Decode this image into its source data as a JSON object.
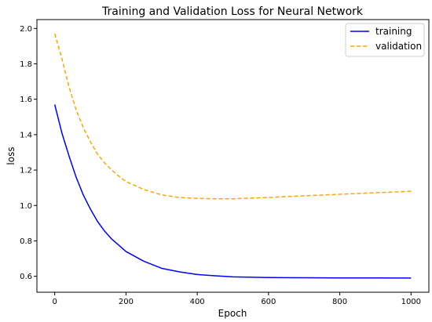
{
  "chart_data": {
    "type": "line",
    "title": "Training and Validation Loss for Neural Network",
    "xlabel": "Epoch",
    "ylabel": "loss",
    "xlim": [
      -50,
      1050
    ],
    "ylim": [
      0.51,
      2.05
    ],
    "xticks": [
      0,
      200,
      400,
      600,
      800,
      1000
    ],
    "yticks": [
      0.6,
      0.8,
      1.0,
      1.2,
      1.4,
      1.6,
      1.8,
      2.0
    ],
    "xtick_labels": [
      "0",
      "200",
      "400",
      "600",
      "800",
      "1000"
    ],
    "ytick_labels": [
      "0.6",
      "0.8",
      "1.0",
      "1.2",
      "1.4",
      "1.6",
      "1.8",
      "2.0"
    ],
    "grid": false,
    "legend": {
      "position": "top-right"
    },
    "series": [
      {
        "name": "training",
        "color": "#0000ff",
        "dash": "solid",
        "x": [
          0,
          20,
          40,
          60,
          80,
          100,
          120,
          140,
          160,
          180,
          200,
          250,
          300,
          350,
          400,
          450,
          500,
          600,
          700,
          800,
          900,
          1000
        ],
        "y": [
          1.57,
          1.41,
          1.28,
          1.16,
          1.06,
          0.98,
          0.91,
          0.855,
          0.81,
          0.775,
          0.74,
          0.685,
          0.645,
          0.625,
          0.61,
          0.603,
          0.597,
          0.593,
          0.592,
          0.591,
          0.591,
          0.59
        ]
      },
      {
        "name": "validation",
        "color": "#ffa500",
        "dash": "dashed",
        "x": [
          0,
          20,
          40,
          60,
          80,
          100,
          120,
          140,
          160,
          180,
          200,
          250,
          300,
          350,
          400,
          450,
          500,
          600,
          700,
          800,
          900,
          1000
        ],
        "y": [
          1.97,
          1.83,
          1.67,
          1.54,
          1.44,
          1.36,
          1.29,
          1.24,
          1.2,
          1.165,
          1.135,
          1.09,
          1.06,
          1.045,
          1.04,
          1.038,
          1.038,
          1.045,
          1.055,
          1.063,
          1.072,
          1.08
        ]
      }
    ]
  }
}
